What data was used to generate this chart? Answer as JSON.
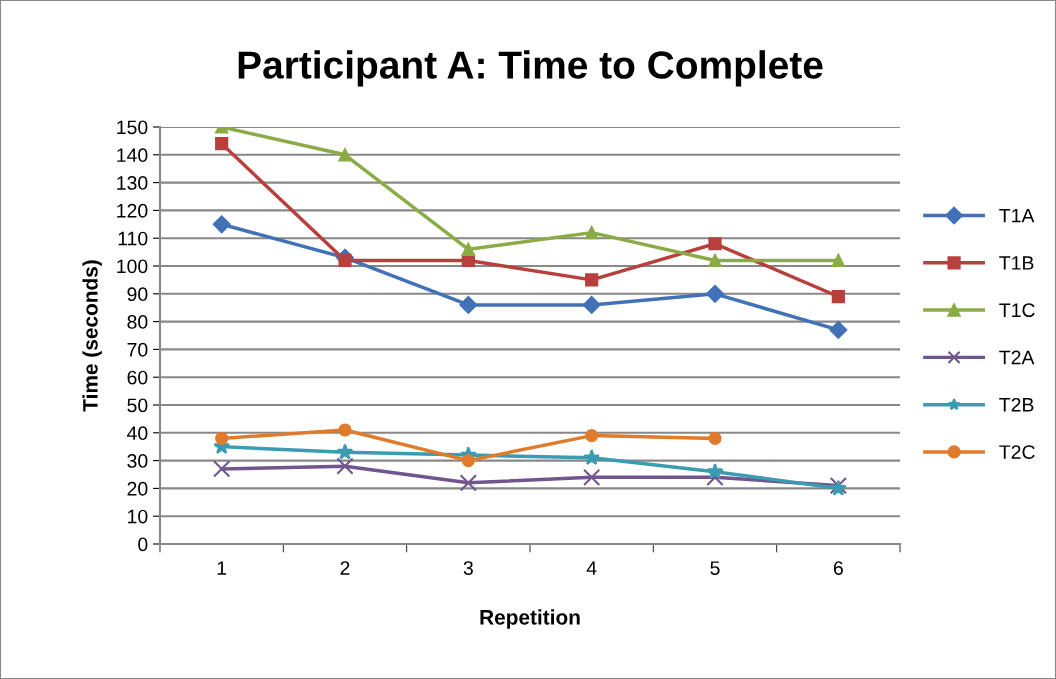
{
  "chart_data": {
    "type": "line",
    "title": "Participant A: Time to Complete",
    "xlabel": "Repetition",
    "ylabel": "Time (seconds)",
    "categories": [
      "1",
      "2",
      "3",
      "4",
      "5",
      "6"
    ],
    "ylim": [
      0,
      150
    ],
    "yticks": [
      0,
      10,
      20,
      30,
      40,
      50,
      60,
      70,
      80,
      90,
      100,
      110,
      120,
      130,
      140,
      150
    ],
    "grid": "y",
    "legend": "right",
    "line_style": "solid",
    "series": [
      {
        "name": "T1A",
        "color": "#4172b8",
        "marker": "diamond",
        "values": [
          115,
          103,
          86,
          86,
          90,
          77
        ]
      },
      {
        "name": "T1B",
        "color": "#b8403c",
        "marker": "square",
        "values": [
          144,
          102,
          102,
          95,
          108,
          89
        ]
      },
      {
        "name": "T1C",
        "color": "#8aab45",
        "marker": "triangle",
        "values": [
          150,
          140,
          106,
          112,
          102,
          102
        ]
      },
      {
        "name": "T2A",
        "color": "#71558f",
        "marker": "cross",
        "values": [
          27,
          28,
          22,
          24,
          24,
          21
        ]
      },
      {
        "name": "T2B",
        "color": "#3b9bb0",
        "marker": "star",
        "values": [
          35,
          33,
          32,
          31,
          26,
          20
        ]
      },
      {
        "name": "T2C",
        "color": "#e07b2b",
        "marker": "circle",
        "values": [
          38,
          41,
          30,
          39,
          38,
          null
        ]
      }
    ]
  }
}
